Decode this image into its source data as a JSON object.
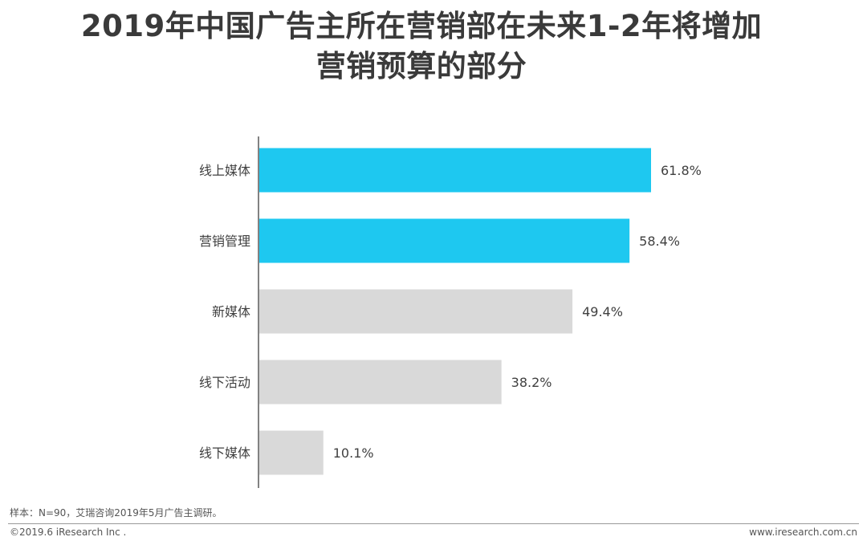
{
  "header": {
    "title_line1": "2019年中国广告主所在营销部在未来1-2年将增加",
    "title_line2": "营销预算的部分"
  },
  "chart_data": {
    "type": "bar",
    "orientation": "horizontal",
    "categories": [
      "线上媒体",
      "营销管理",
      "新媒体",
      "线下活动",
      "线下媒体"
    ],
    "values": [
      61.8,
      58.4,
      49.4,
      38.2,
      10.1
    ],
    "value_labels": [
      "61.8%",
      "58.4%",
      "49.4%",
      "38.2%",
      "10.1%"
    ],
    "highlight": [
      true,
      true,
      false,
      false,
      false
    ],
    "colors": {
      "highlight": "#1ec8f0",
      "normal": "#d9d9d9"
    },
    "xlim": [
      0,
      70
    ],
    "grid": false,
    "legend": "none"
  },
  "footer": {
    "note": "样本：N=90，艾瑞咨询2019年5月广告主调研。",
    "copyright": "©2019.6 iResearch Inc .",
    "website": "www.iresearch.com.cn"
  }
}
